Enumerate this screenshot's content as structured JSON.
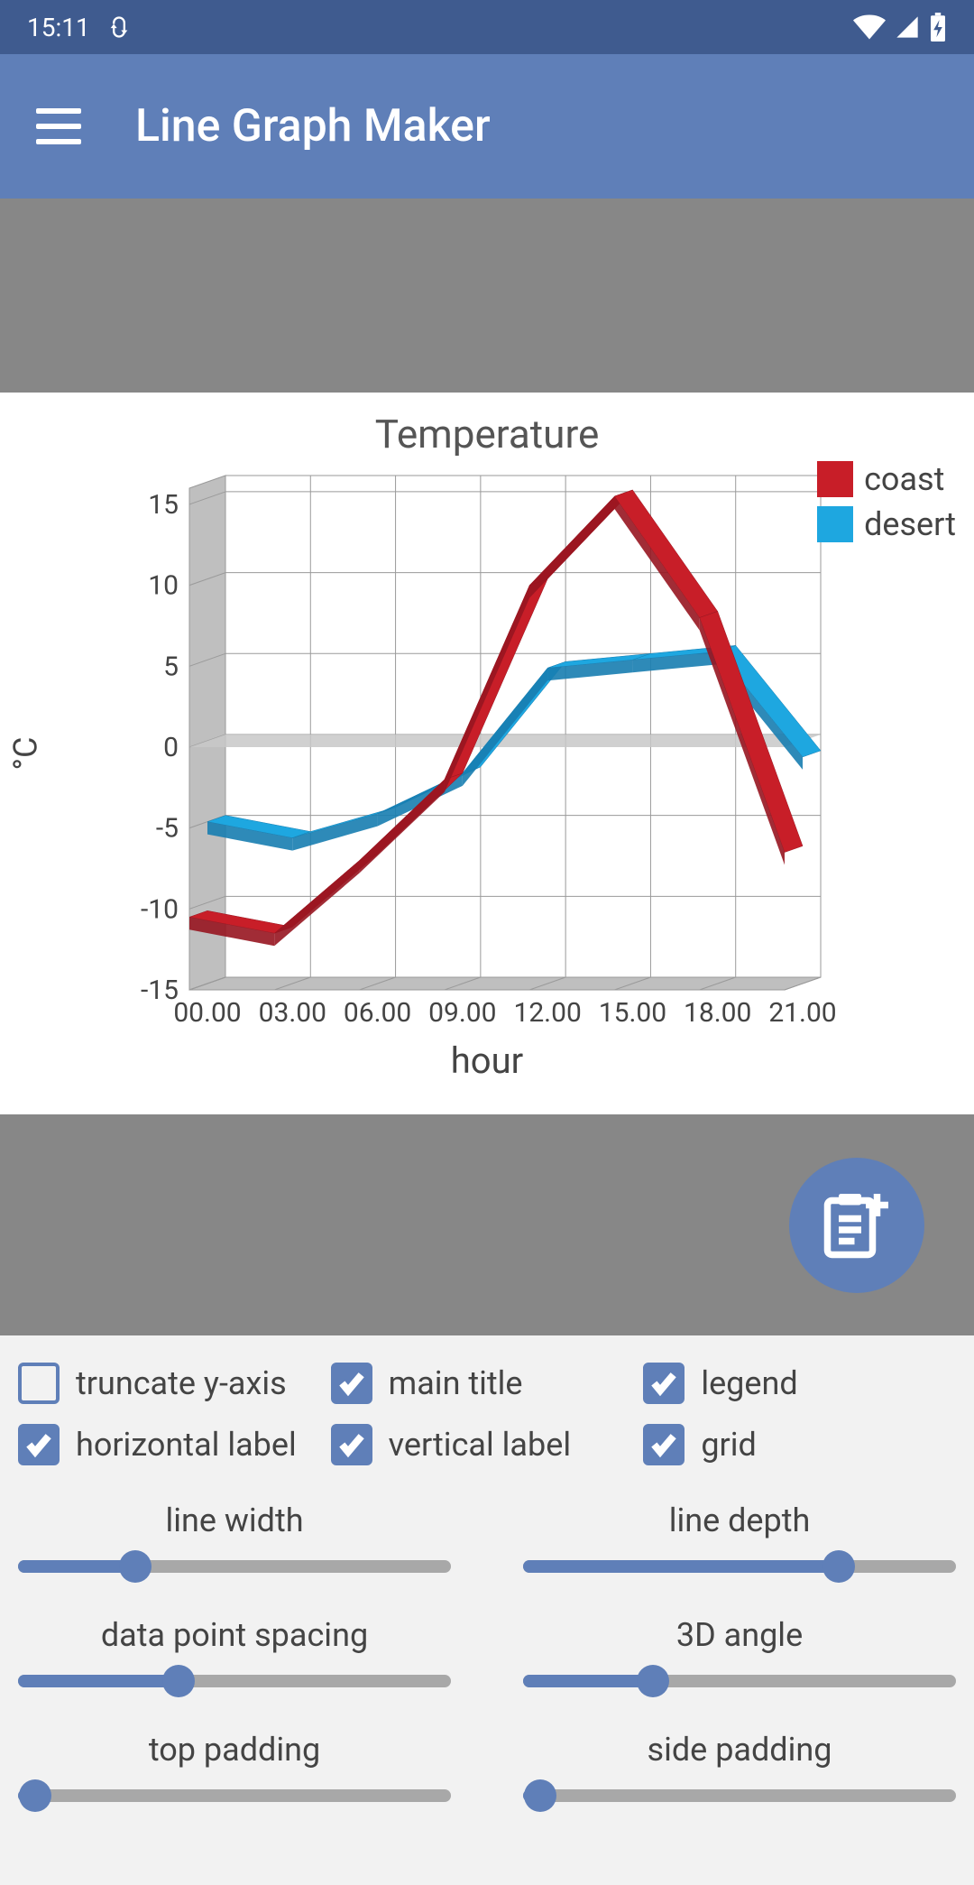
{
  "statusbar": {
    "time": "15:11",
    "icons": [
      "sync",
      "wifi",
      "cell",
      "battery"
    ]
  },
  "appbar": {
    "title": "Line Graph Maker"
  },
  "chart": {
    "type": "line3d",
    "title": "Temperature",
    "xlabel": "hour",
    "ylabel": "°C",
    "x_categories": [
      "00.00",
      "03.00",
      "06.00",
      "09.00",
      "12.00",
      "15.00",
      "18.00",
      "21.00"
    ],
    "y_ticks": [
      -15,
      -10,
      -5,
      0,
      5,
      10,
      15
    ],
    "ylim": [
      -15,
      16
    ],
    "series": [
      {
        "name": "coast",
        "color": "#c81e28",
        "color_dark": "#971520",
        "values": [
          -10.5,
          -11.5,
          -7,
          -2,
          10,
          15.5,
          8,
          -6.5
        ]
      },
      {
        "name": "desert",
        "color": "#1ea7e0",
        "color_dark": "#177db0",
        "values": [
          -5,
          -6,
          -4.5,
          -2,
          4.5,
          5,
          5.5,
          -1
        ]
      }
    ],
    "background_color": "#ffffff",
    "grid_color": "#9a9a9a",
    "floor_color": "#bfbfbf",
    "label_fontsize": 30,
    "title_fontsize": 44,
    "depth": 40,
    "angle": 0.3
  },
  "fab": {
    "icon": "clipboard-plus"
  },
  "checks": [
    {
      "key": "truncate_y",
      "label": "truncate y-axis",
      "checked": false
    },
    {
      "key": "main_title",
      "label": "main title",
      "checked": true
    },
    {
      "key": "legend",
      "label": "legend",
      "checked": true
    },
    {
      "key": "horizontal_label",
      "label": "horizontal label",
      "checked": true
    },
    {
      "key": "vertical_label",
      "label": "vertical label",
      "checked": true
    },
    {
      "key": "grid",
      "label": "grid",
      "checked": true
    }
  ],
  "sliders": [
    {
      "key": "line_width",
      "label": "line width",
      "value": 0.27
    },
    {
      "key": "line_depth",
      "label": "line depth",
      "value": 0.73
    },
    {
      "key": "data_point_spacing",
      "label": "data point spacing",
      "value": 0.37
    },
    {
      "key": "3d_angle",
      "label": "3D angle",
      "value": 0.3
    },
    {
      "key": "top_padding",
      "label": "top padding",
      "value": 0.04
    },
    {
      "key": "side_padding",
      "label": "side padding",
      "value": 0.04
    }
  ],
  "colors": {
    "accent": "#5f7fb8",
    "statusbar": "#3f5b8f",
    "gray_band": "#878787",
    "panel_bg": "#f2f2f2",
    "slider_track": "#a8a8a8",
    "text": "#444444"
  }
}
